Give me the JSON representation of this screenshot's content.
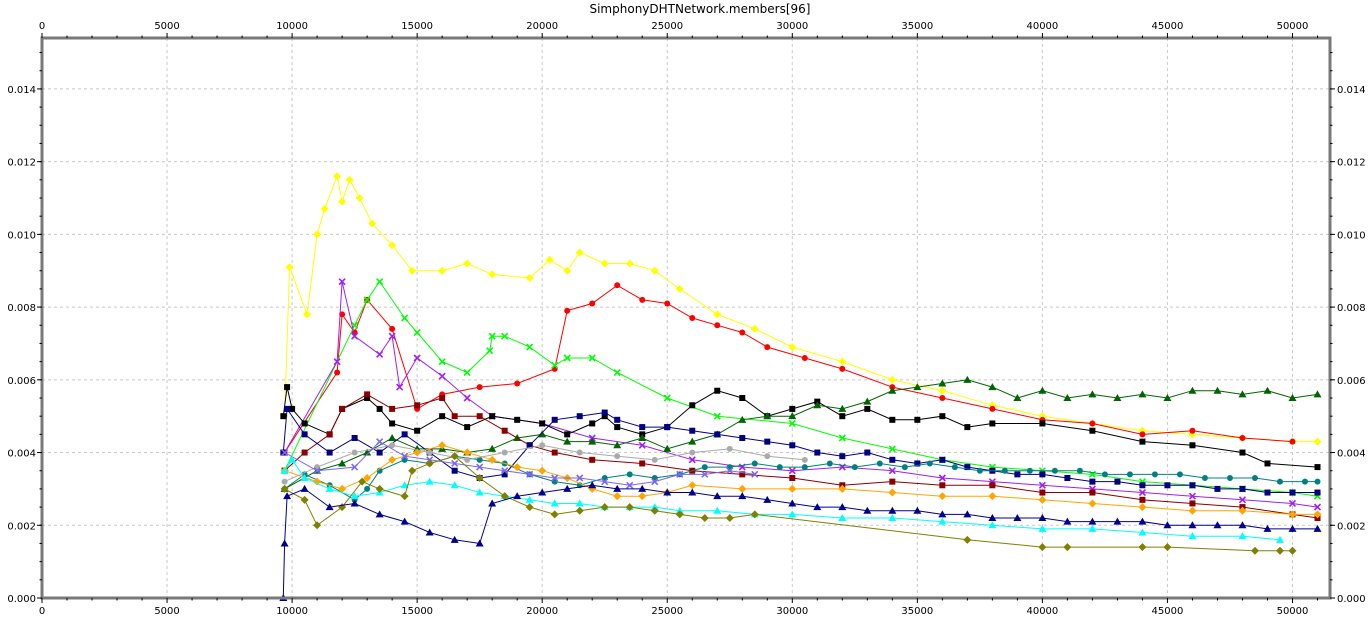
{
  "chart_data": {
    "type": "line",
    "title": "SimphonyDHTNetwork.members[96]",
    "xlabel": "",
    "ylabel": "",
    "xlim": [
      0,
      51500
    ],
    "ylim": [
      0,
      0.0154
    ],
    "x_ticks": [
      0,
      5000,
      10000,
      15000,
      20000,
      25000,
      30000,
      35000,
      40000,
      45000,
      50000
    ],
    "y_ticks": [
      0.0,
      0.002,
      0.004,
      0.006,
      0.008,
      0.01,
      0.012,
      0.014
    ],
    "x_tick_labels": [
      "0",
      "5000",
      "10000",
      "15000",
      "20000",
      "25000",
      "30000",
      "35000",
      "40000",
      "45000",
      "50000"
    ],
    "y_tick_labels": [
      "0.000",
      "0.002",
      "0.004",
      "0.006",
      "0.008",
      "0.010",
      "0.012",
      "0.014"
    ],
    "grid": true,
    "legend": "none",
    "series": [
      {
        "color": "#ffff00",
        "marker": "diamond",
        "x": [
          9700,
          9900,
          10600,
          11000,
          11300,
          11800,
          12000,
          12300,
          12700,
          13200,
          14000,
          14800,
          16000,
          17000,
          18000,
          19500,
          20300,
          21000,
          21500,
          22500,
          23500,
          24500,
          25500,
          27000,
          28500,
          30000,
          32000,
          34000,
          36000,
          38000,
          40000,
          42000,
          44000,
          46000,
          48000,
          50000,
          51000
        ],
        "y": [
          0.005,
          0.0091,
          0.0078,
          0.01,
          0.0107,
          0.0116,
          0.0109,
          0.0115,
          0.011,
          0.0103,
          0.0097,
          0.009,
          0.009,
          0.0092,
          0.0089,
          0.0088,
          0.0093,
          0.009,
          0.0095,
          0.0092,
          0.0092,
          0.009,
          0.0085,
          0.0078,
          0.0074,
          0.0069,
          0.0065,
          0.006,
          0.0057,
          0.0053,
          0.005,
          0.0048,
          0.0046,
          0.0045,
          0.0044,
          0.0043,
          0.0043
        ]
      },
      {
        "color": "#ff0000",
        "marker": "circle",
        "x": [
          9700,
          11800,
          12000,
          12500,
          13000,
          14000,
          15000,
          16000,
          17500,
          19000,
          20500,
          21000,
          22000,
          23000,
          24000,
          25000,
          26000,
          27000,
          28000,
          29000,
          30500,
          32000,
          34000,
          36000,
          38000,
          40000,
          42000,
          44000,
          46000,
          48000,
          50000
        ],
        "y": [
          0.004,
          0.0062,
          0.0078,
          0.0073,
          0.0082,
          0.0074,
          0.0052,
          0.0056,
          0.0058,
          0.0059,
          0.0063,
          0.0079,
          0.0081,
          0.0086,
          0.0082,
          0.0081,
          0.0077,
          0.0075,
          0.0073,
          0.0069,
          0.0066,
          0.0063,
          0.0058,
          0.0055,
          0.0052,
          0.0049,
          0.0048,
          0.0045,
          0.0046,
          0.0044,
          0.0043
        ]
      },
      {
        "color": "#00ff00",
        "marker": "x",
        "x": [
          9700,
          12500,
          13000,
          13500,
          14500,
          15000,
          16000,
          17000,
          17900,
          18000,
          18500,
          19500,
          20500,
          21000,
          22000,
          23000,
          25000,
          27000,
          30000,
          32000,
          34000,
          36000,
          38000,
          40000,
          42000,
          44000,
          46000,
          48000,
          50000,
          51000
        ],
        "y": [
          0.0035,
          0.0075,
          0.0082,
          0.0087,
          0.0077,
          0.0073,
          0.0065,
          0.0062,
          0.0068,
          0.0072,
          0.0072,
          0.0069,
          0.0064,
          0.0066,
          0.0066,
          0.0062,
          0.0055,
          0.005,
          0.0048,
          0.0044,
          0.0041,
          0.0038,
          0.0036,
          0.0035,
          0.0034,
          0.0032,
          0.0031,
          0.003,
          0.0029,
          0.0028
        ]
      },
      {
        "color": "#a020f0",
        "marker": "x",
        "x": [
          9700,
          11800,
          12000,
          12500,
          13500,
          14000,
          14300,
          15000,
          16000,
          17000,
          18000,
          20000,
          22000,
          24000,
          26000,
          28000,
          30000,
          32000,
          34000,
          36000,
          38000,
          40000,
          42000,
          44000,
          46000,
          48000,
          50000,
          51000
        ],
        "y": [
          0.004,
          0.0065,
          0.0087,
          0.0072,
          0.0067,
          0.0072,
          0.0058,
          0.0066,
          0.0061,
          0.0055,
          0.005,
          0.0048,
          0.0044,
          0.0042,
          0.0038,
          0.0036,
          0.0035,
          0.0036,
          0.0035,
          0.0033,
          0.0032,
          0.0031,
          0.003,
          0.0029,
          0.0028,
          0.0027,
          0.0026,
          0.0025
        ]
      },
      {
        "color": "#000000",
        "marker": "square",
        "x": [
          9650,
          9800,
          10000,
          10500,
          11500,
          12000,
          13000,
          13500,
          14000,
          15000,
          16000,
          17000,
          18000,
          19000,
          20000,
          21000,
          22000,
          22500,
          23000,
          24000,
          25000,
          26000,
          27000,
          28000,
          29000,
          30000,
          31000,
          32000,
          33000,
          34000,
          35000,
          36000,
          37000,
          38000,
          40000,
          42000,
          44000,
          46000,
          48000,
          49000,
          51000
        ],
        "y": [
          0.005,
          0.0058,
          0.0052,
          0.0048,
          0.0045,
          0.0052,
          0.0055,
          0.0052,
          0.0048,
          0.0046,
          0.005,
          0.0047,
          0.005,
          0.0049,
          0.0048,
          0.0045,
          0.0048,
          0.005,
          0.0047,
          0.0045,
          0.0047,
          0.0053,
          0.0057,
          0.0055,
          0.005,
          0.0052,
          0.0054,
          0.005,
          0.0052,
          0.0049,
          0.0049,
          0.005,
          0.0047,
          0.0048,
          0.0048,
          0.0046,
          0.0043,
          0.0042,
          0.004,
          0.0037,
          0.0036
        ]
      },
      {
        "color": "#006400",
        "marker": "triangle",
        "x": [
          9700,
          11000,
          12000,
          13000,
          14000,
          15000,
          16000,
          17000,
          18000,
          19000,
          20000,
          21000,
          22000,
          23000,
          24000,
          25000,
          26000,
          27000,
          28000,
          29000,
          30000,
          31000,
          32000,
          33000,
          34000,
          35000,
          36000,
          37000,
          38000,
          39000,
          40000,
          41000,
          42000,
          43000,
          44000,
          45000,
          46000,
          47000,
          48000,
          49000,
          50000,
          51000
        ],
        "y": [
          0.003,
          0.0035,
          0.0037,
          0.004,
          0.0044,
          0.0041,
          0.0041,
          0.004,
          0.0041,
          0.0044,
          0.0045,
          0.0043,
          0.0043,
          0.0042,
          0.0044,
          0.0041,
          0.0043,
          0.0045,
          0.0049,
          0.005,
          0.005,
          0.0053,
          0.0052,
          0.0054,
          0.0057,
          0.0058,
          0.0059,
          0.006,
          0.0058,
          0.0055,
          0.0057,
          0.0055,
          0.0056,
          0.0055,
          0.0056,
          0.0055,
          0.0057,
          0.0057,
          0.0056,
          0.0057,
          0.0055,
          0.0056
        ]
      },
      {
        "color": "#8b0000",
        "marker": "square",
        "x": [
          9700,
          10500,
          11500,
          12000,
          13000,
          14000,
          15000,
          16000,
          16500,
          17500,
          18500,
          19500,
          20500,
          22000,
          24000,
          26000,
          28000,
          30000,
          32000,
          34000,
          36000,
          38000,
          40000,
          42000,
          44000,
          46000,
          48000,
          50000,
          51000
        ],
        "y": [
          0.0035,
          0.004,
          0.0045,
          0.0052,
          0.0056,
          0.0052,
          0.0053,
          0.0055,
          0.005,
          0.005,
          0.0046,
          0.0042,
          0.004,
          0.0038,
          0.0037,
          0.0035,
          0.0034,
          0.0033,
          0.0031,
          0.0032,
          0.0031,
          0.0031,
          0.0029,
          0.0029,
          0.0027,
          0.0026,
          0.0025,
          0.0023,
          0.0022
        ]
      },
      {
        "color": "#000080",
        "marker": "square",
        "x": [
          9650,
          9800,
          10500,
          11500,
          12500,
          13500,
          14500,
          15500,
          16500,
          17500,
          18500,
          19500,
          20500,
          21500,
          22500,
          23000,
          24000,
          25000,
          26000,
          27000,
          28000,
          29000,
          30000,
          31000,
          32000,
          33000,
          34000,
          35000,
          36000,
          37000,
          38000,
          39000,
          40000,
          41000,
          42000,
          43000,
          44000,
          45000,
          46000,
          47000,
          48000,
          49000,
          50000,
          51000
        ],
        "y": [
          0.004,
          0.0052,
          0.0045,
          0.004,
          0.0044,
          0.004,
          0.0045,
          0.004,
          0.0035,
          0.0033,
          0.0034,
          0.0042,
          0.0049,
          0.005,
          0.0051,
          0.0049,
          0.0047,
          0.0047,
          0.0046,
          0.0045,
          0.0044,
          0.0043,
          0.0042,
          0.004,
          0.0039,
          0.004,
          0.0038,
          0.0037,
          0.0038,
          0.0036,
          0.0035,
          0.0034,
          0.0034,
          0.0033,
          0.0032,
          0.0032,
          0.0031,
          0.0031,
          0.0031,
          0.003,
          0.003,
          0.0029,
          0.0029,
          0.0029
        ]
      },
      {
        "color": "#008080",
        "marker": "circle",
        "x": [
          9700,
          10500,
          11500,
          12500,
          13000,
          13500,
          14500,
          15500,
          16500,
          17500,
          18500,
          19500,
          20500,
          21500,
          22500,
          23500,
          24500,
          25500,
          26500,
          27500,
          28500,
          29500,
          30500,
          31500,
          32500,
          33500,
          34500,
          35500,
          36500,
          37500,
          38500,
          39500,
          40500,
          41500,
          42500,
          43500,
          44500,
          45500,
          46500,
          47500,
          48500,
          49500,
          50500,
          51000
        ],
        "y": [
          0.003,
          0.0034,
          0.0031,
          0.0027,
          0.003,
          0.0035,
          0.0038,
          0.0037,
          0.0039,
          0.0038,
          0.0037,
          0.0034,
          0.0032,
          0.0031,
          0.0033,
          0.0034,
          0.0033,
          0.0034,
          0.0036,
          0.0036,
          0.0037,
          0.0036,
          0.0036,
          0.0037,
          0.0036,
          0.0037,
          0.0036,
          0.0037,
          0.0036,
          0.0035,
          0.0035,
          0.0035,
          0.0035,
          0.0035,
          0.0034,
          0.0034,
          0.0034,
          0.0034,
          0.0033,
          0.0033,
          0.0033,
          0.0032,
          0.0032,
          0.0032
        ]
      },
      {
        "color": "#ffa500",
        "marker": "diamond",
        "x": [
          9700,
          11000,
          12000,
          13000,
          14000,
          15000,
          16000,
          17000,
          18000,
          19000,
          20000,
          21000,
          22000,
          23000,
          24000,
          25000,
          26000,
          28000,
          30000,
          32000,
          34000,
          36000,
          38000,
          40000,
          42000,
          44000,
          46000,
          48000,
          50000,
          51000
        ],
        "y": [
          0.0035,
          0.0032,
          0.003,
          0.0033,
          0.0038,
          0.004,
          0.0042,
          0.004,
          0.0038,
          0.0036,
          0.0035,
          0.0033,
          0.003,
          0.0028,
          0.0028,
          0.0029,
          0.0031,
          0.003,
          0.003,
          0.003,
          0.0029,
          0.0028,
          0.0028,
          0.0027,
          0.0026,
          0.0025,
          0.0024,
          0.0024,
          0.0023,
          0.0023
        ]
      },
      {
        "color": "#aaaaaa",
        "marker": "circle",
        "x": [
          9700,
          11000,
          12500,
          14000,
          15500,
          17000,
          18500,
          20000,
          21500,
          23000,
          24500,
          26000,
          27500,
          29000,
          30500
        ],
        "y": [
          0.0032,
          0.0036,
          0.004,
          0.0042,
          0.004,
          0.0038,
          0.004,
          0.0042,
          0.004,
          0.0039,
          0.0038,
          0.004,
          0.0041,
          0.0039,
          0.0038
        ]
      },
      {
        "color": "#7b68ee",
        "marker": "x",
        "x": [
          9700,
          11000,
          12500,
          13500,
          14500,
          15500,
          16500,
          17500,
          18500,
          19500,
          20500,
          21500,
          22500,
          23500,
          24500,
          25500,
          26500,
          27500,
          28500
        ],
        "y": [
          0.004,
          0.0035,
          0.0036,
          0.0043,
          0.0039,
          0.0038,
          0.0037,
          0.0036,
          0.0035,
          0.0034,
          0.0033,
          0.0033,
          0.0032,
          0.0031,
          0.0032,
          0.0034,
          0.0034,
          0.0035,
          0.0034
        ]
      },
      {
        "color": "#00ffff",
        "marker": "triangle",
        "x": [
          9700,
          10000,
          10500,
          11500,
          12500,
          13500,
          14500,
          15500,
          16500,
          17500,
          18500,
          19500,
          20500,
          21500,
          22500,
          23500,
          24500,
          25500,
          27000,
          28500,
          30000,
          32000,
          34000,
          36000,
          38000,
          40000,
          42000,
          44000,
          46000,
          48000,
          49500
        ],
        "y": [
          0.0035,
          0.0038,
          0.0033,
          0.003,
          0.0028,
          0.0029,
          0.0031,
          0.0032,
          0.0031,
          0.0029,
          0.0028,
          0.0027,
          0.0026,
          0.0026,
          0.0025,
          0.0025,
          0.0025,
          0.0024,
          0.0024,
          0.0023,
          0.0023,
          0.0022,
          0.0022,
          0.0021,
          0.002,
          0.0019,
          0.0019,
          0.0018,
          0.0017,
          0.0017,
          0.0016
        ]
      },
      {
        "color": "#808000",
        "marker": "diamond",
        "x": [
          9700,
          10500,
          11000,
          12000,
          12800,
          13500,
          14500,
          14800,
          15500,
          16500,
          17500,
          18500,
          19500,
          20500,
          21500,
          22500,
          23500,
          24500,
          25500,
          26500,
          27500,
          28500,
          37000,
          40000,
          41000,
          44000,
          45000,
          48500,
          49500,
          50000
        ],
        "y": [
          0.003,
          0.0027,
          0.002,
          0.0025,
          0.0032,
          0.003,
          0.0028,
          0.0035,
          0.0037,
          0.0039,
          0.0033,
          0.0028,
          0.0025,
          0.0023,
          0.0024,
          0.0025,
          0.0025,
          0.0024,
          0.0023,
          0.0022,
          0.0022,
          0.0023,
          0.0016,
          0.0014,
          0.0014,
          0.0014,
          0.0014,
          0.0013,
          0.0013,
          0.0013
        ]
      },
      {
        "color": "#00008b",
        "marker": "triangle",
        "x": [
          9650,
          9700,
          9800,
          10500,
          11500,
          12500,
          13500,
          14500,
          15500,
          16500,
          17500,
          18000,
          19000,
          20000,
          21000,
          22000,
          23000,
          24000,
          25000,
          26000,
          27000,
          28000,
          29000,
          30000,
          31000,
          32000,
          33000,
          34000,
          35000,
          36000,
          37000,
          38000,
          39000,
          40000,
          41000,
          42000,
          43000,
          44000,
          45000,
          46000,
          47000,
          48000,
          49000,
          50000,
          51000
        ],
        "y": [
          0.0,
          0.0015,
          0.0028,
          0.003,
          0.0025,
          0.0026,
          0.0023,
          0.0021,
          0.0018,
          0.0016,
          0.0015,
          0.0026,
          0.0028,
          0.0029,
          0.003,
          0.0031,
          0.003,
          0.003,
          0.0029,
          0.0029,
          0.0028,
          0.0028,
          0.0027,
          0.0026,
          0.0025,
          0.0025,
          0.0024,
          0.0024,
          0.0024,
          0.0023,
          0.0023,
          0.0022,
          0.0022,
          0.0022,
          0.0021,
          0.0021,
          0.0021,
          0.0021,
          0.002,
          0.002,
          0.002,
          0.002,
          0.0019,
          0.0019,
          0.0019
        ]
      }
    ]
  }
}
